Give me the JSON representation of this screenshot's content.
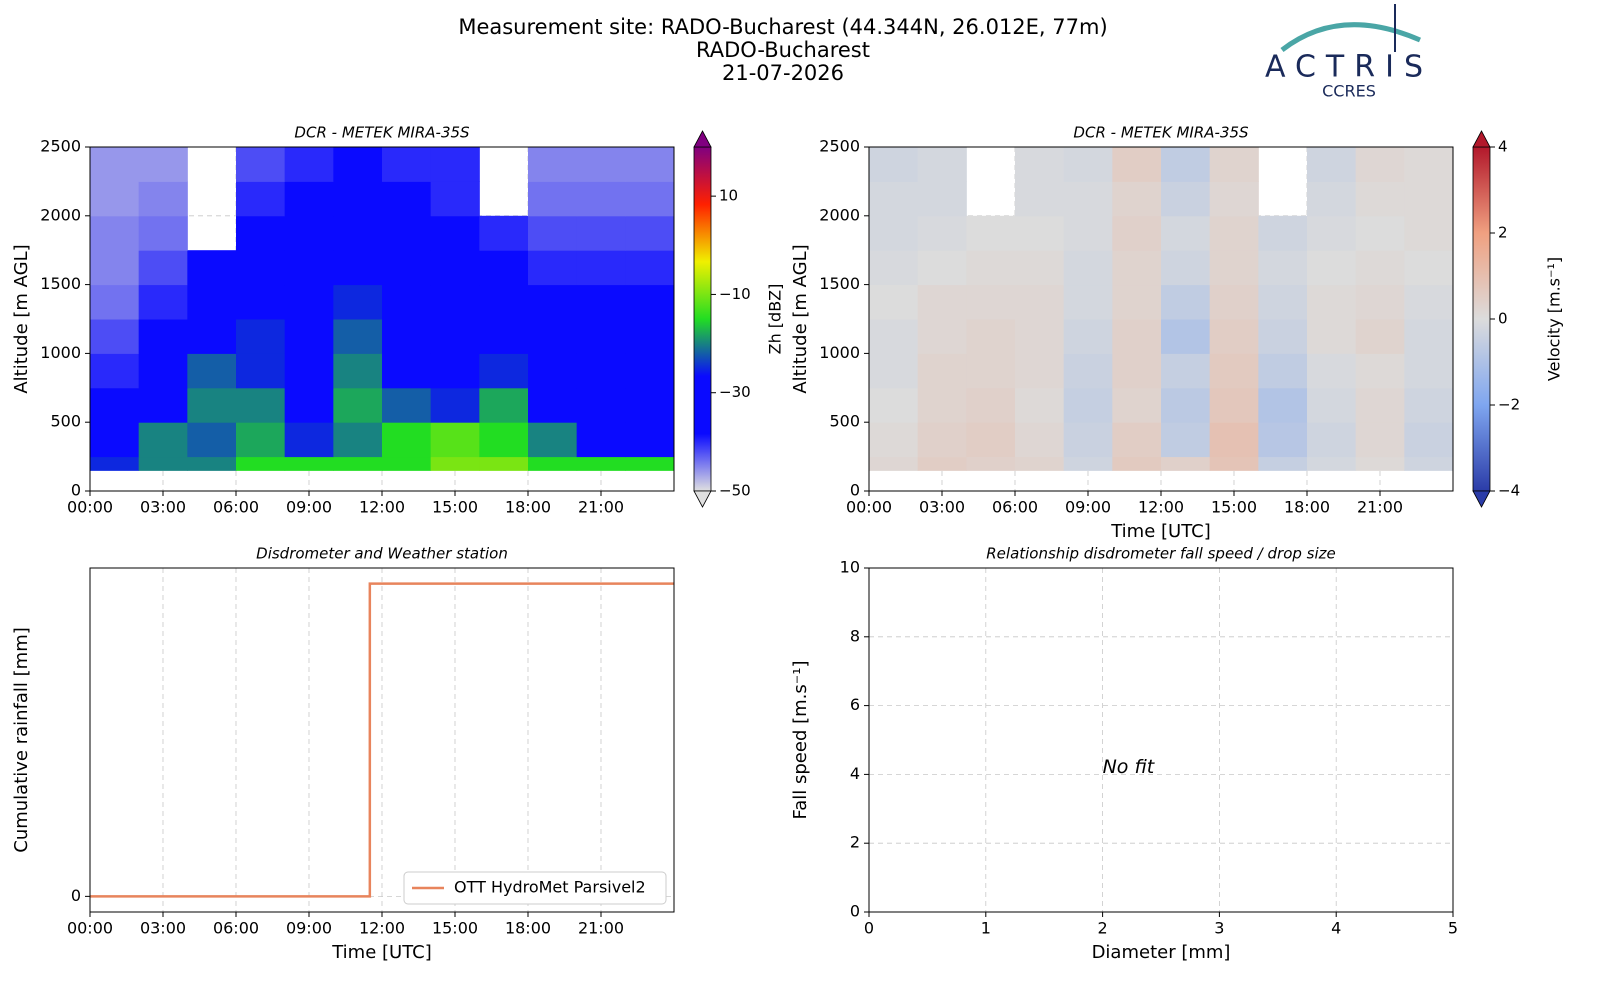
{
  "header": {
    "title_lines": [
      "Measurement site: RADO-Bucharest (44.344N, 26.012E, 77m)",
      "RADO-Bucharest",
      "21-07-2026"
    ],
    "logo": {
      "name": "ACTRIS",
      "sub": "CCRES"
    }
  },
  "chart_data": [
    {
      "type": "heatmap",
      "title": "DCR - METEK MIRA-35S",
      "ylabel": "Altitude [m AGL]",
      "xlim": [
        0,
        24
      ],
      "xticks": [
        {
          "value": 0,
          "label": "00:00"
        },
        {
          "value": 3,
          "label": "03:00"
        },
        {
          "value": 6,
          "label": "06:00"
        },
        {
          "value": 9,
          "label": "09:00"
        },
        {
          "value": 12,
          "label": "12:00"
        },
        {
          "value": 15,
          "label": "15:00"
        },
        {
          "value": 18,
          "label": "18:00"
        },
        {
          "value": 21,
          "label": "21:00"
        }
      ],
      "ylim": [
        0,
        2500
      ],
      "yticks": [
        0,
        500,
        1000,
        1500,
        2000,
        2500
      ],
      "grid": true,
      "x_bins": [
        0,
        2,
        4,
        6,
        8,
        10,
        12,
        14,
        16,
        18,
        20,
        22,
        24
      ],
      "y_bins": [
        150,
        250,
        500,
        750,
        1000,
        1250,
        1500,
        1750,
        2000,
        2250,
        2500
      ],
      "values": [
        [
          -25,
          -20,
          -20,
          -15,
          -15,
          -15,
          -15,
          -10,
          -10,
          -15,
          -15,
          -15
        ],
        [
          -35,
          -20,
          -22,
          -18,
          -25,
          -20,
          -15,
          -12,
          -15,
          -20,
          -30,
          -30
        ],
        [
          -38,
          -28,
          -20,
          -20,
          -28,
          -18,
          -22,
          -25,
          -18,
          -28,
          -32,
          -32
        ],
        [
          -40,
          -35,
          -22,
          -25,
          -30,
          -20,
          -28,
          -28,
          -25,
          -32,
          -33,
          -33
        ],
        [
          -42,
          -38,
          -28,
          -25,
          -30,
          -22,
          -30,
          -30,
          -32,
          -35,
          -35,
          -35
        ],
        [
          -44,
          -40,
          -30,
          -28,
          -32,
          -25,
          -32,
          -32,
          -35,
          -38,
          -38,
          -38
        ],
        [
          -45,
          -42,
          -35,
          -28,
          -32,
          -28,
          -33,
          -35,
          -38,
          -40,
          -40,
          -40
        ],
        [
          -45,
          -44,
          null,
          -30,
          -35,
          -30,
          -35,
          -38,
          -40,
          -42,
          -42,
          -42
        ],
        [
          -46,
          -45,
          null,
          -40,
          -38,
          -35,
          -38,
          -40,
          null,
          -44,
          -44,
          -44
        ],
        [
          -46,
          -46,
          null,
          -42,
          -40,
          -38,
          -40,
          -40,
          null,
          -45,
          -45,
          -45
        ]
      ],
      "colorbar": {
        "label": "Zh [dBZ]",
        "lim": [
          -50,
          20
        ],
        "ticks": [
          {
            "value": -50,
            "label": "−50"
          },
          {
            "value": -30,
            "label": "−30"
          },
          {
            "value": -10,
            "label": "−10"
          },
          10
        ],
        "colormap": [
          "#e0e0e0",
          "#0a0aff",
          "#0a0aff",
          "#22dd22",
          "#f0f000",
          "#ff2000",
          "#800080"
        ]
      }
    },
    {
      "type": "heatmap",
      "title": "DCR - METEK MIRA-35S",
      "xlabel": "Time [UTC]",
      "ylabel": "Altitude [m AGL]",
      "xlim": [
        0,
        24
      ],
      "xticks": [
        {
          "value": 0,
          "label": "00:00"
        },
        {
          "value": 3,
          "label": "03:00"
        },
        {
          "value": 6,
          "label": "06:00"
        },
        {
          "value": 9,
          "label": "09:00"
        },
        {
          "value": 12,
          "label": "12:00"
        },
        {
          "value": 15,
          "label": "15:00"
        },
        {
          "value": 18,
          "label": "18:00"
        },
        {
          "value": 21,
          "label": "21:00"
        }
      ],
      "ylim": [
        0,
        2500
      ],
      "yticks": [
        0,
        500,
        1000,
        1500,
        2000,
        2500
      ],
      "grid": true,
      "x_bins": [
        0,
        2,
        4,
        6,
        8,
        10,
        12,
        14,
        16,
        18,
        20,
        22,
        24
      ],
      "y_bins": [
        150,
        250,
        500,
        750,
        1000,
        1250,
        1500,
        1750,
        2000,
        2250,
        2500
      ],
      "values": [
        [
          0.2,
          0.5,
          0.4,
          0.3,
          -0.3,
          0.6,
          0.4,
          0.8,
          -0.5,
          -0.2,
          0.1,
          -0.3
        ],
        [
          0.1,
          0.4,
          0.5,
          0.2,
          -0.4,
          0.5,
          -0.6,
          0.9,
          -0.8,
          -0.3,
          0.2,
          -0.4
        ],
        [
          0.0,
          0.3,
          0.4,
          0.1,
          -0.5,
          0.3,
          -0.7,
          0.7,
          -0.9,
          -0.2,
          0.2,
          -0.3
        ],
        [
          -0.1,
          0.3,
          0.3,
          0.2,
          -0.4,
          0.4,
          -0.5,
          0.6,
          -0.6,
          -0.1,
          0.1,
          -0.2
        ],
        [
          -0.1,
          0.2,
          0.3,
          0.2,
          -0.3,
          0.4,
          -0.9,
          0.5,
          -0.4,
          0.1,
          0.3,
          -0.2
        ],
        [
          0.0,
          0.2,
          0.2,
          0.2,
          -0.2,
          0.3,
          -0.6,
          0.4,
          -0.3,
          0.1,
          0.2,
          -0.1
        ],
        [
          -0.1,
          0.0,
          0.1,
          0.1,
          -0.2,
          0.3,
          -0.3,
          0.3,
          -0.2,
          0.0,
          0.1,
          0.0
        ],
        [
          -0.2,
          -0.1,
          0.0,
          0.0,
          -0.1,
          0.4,
          -0.2,
          0.3,
          -0.3,
          -0.1,
          0.0,
          0.1
        ],
        [
          -0.2,
          -0.2,
          null,
          -0.1,
          -0.1,
          0.3,
          -0.4,
          0.2,
          null,
          -0.2,
          0.1,
          0.1
        ],
        [
          -0.3,
          -0.2,
          null,
          -0.1,
          -0.2,
          0.5,
          -0.6,
          0.3,
          null,
          -0.3,
          0.2,
          0.1
        ]
      ],
      "colorbar": {
        "label": "Velocity [m.s⁻¹]",
        "lim": [
          -4,
          4
        ],
        "ticks": [
          {
            "value": -4,
            "label": "−4"
          },
          {
            "value": -2,
            "label": "−2"
          },
          0,
          2,
          4
        ],
        "colormap": [
          "#2b3ca8",
          "#7fa6f0",
          "#dcdcdc",
          "#f0a080",
          "#b2182b"
        ]
      }
    },
    {
      "type": "line",
      "title": "Disdrometer and Weather station",
      "xlabel": "Time [UTC]",
      "ylabel": "Cumulative rainfall [mm]",
      "xlim": [
        0,
        24
      ],
      "xticks": [
        {
          "value": 0,
          "label": "00:00"
        },
        {
          "value": 3,
          "label": "03:00"
        },
        {
          "value": 6,
          "label": "06:00"
        },
        {
          "value": 9,
          "label": "09:00"
        },
        {
          "value": 12,
          "label": "12:00"
        },
        {
          "value": 15,
          "label": "15:00"
        },
        {
          "value": 18,
          "label": "18:00"
        },
        {
          "value": 21,
          "label": "21:00"
        }
      ],
      "ylim": [
        -0.05,
        1.05
      ],
      "yticks": [
        0
      ],
      "grid": true,
      "legend": "lower right",
      "x": [
        0,
        11.5,
        11.5,
        24
      ],
      "series": [
        {
          "name": "OTT HydroMet Parsivel2",
          "color": "#e8845c",
          "values": [
            0,
            0,
            1,
            1
          ]
        }
      ]
    },
    {
      "type": "scatter",
      "title": "Relationship disdrometer fall speed / drop size",
      "xlabel": "Diameter [mm]",
      "ylabel": "Fall speed [m.s⁻¹]",
      "xlim": [
        0,
        5
      ],
      "xticks": [
        0,
        1,
        2,
        3,
        4,
        5
      ],
      "ylim": [
        0,
        10
      ],
      "yticks": [
        0,
        2,
        4,
        6,
        8,
        10
      ],
      "grid": true,
      "annotation": "No fit"
    }
  ]
}
